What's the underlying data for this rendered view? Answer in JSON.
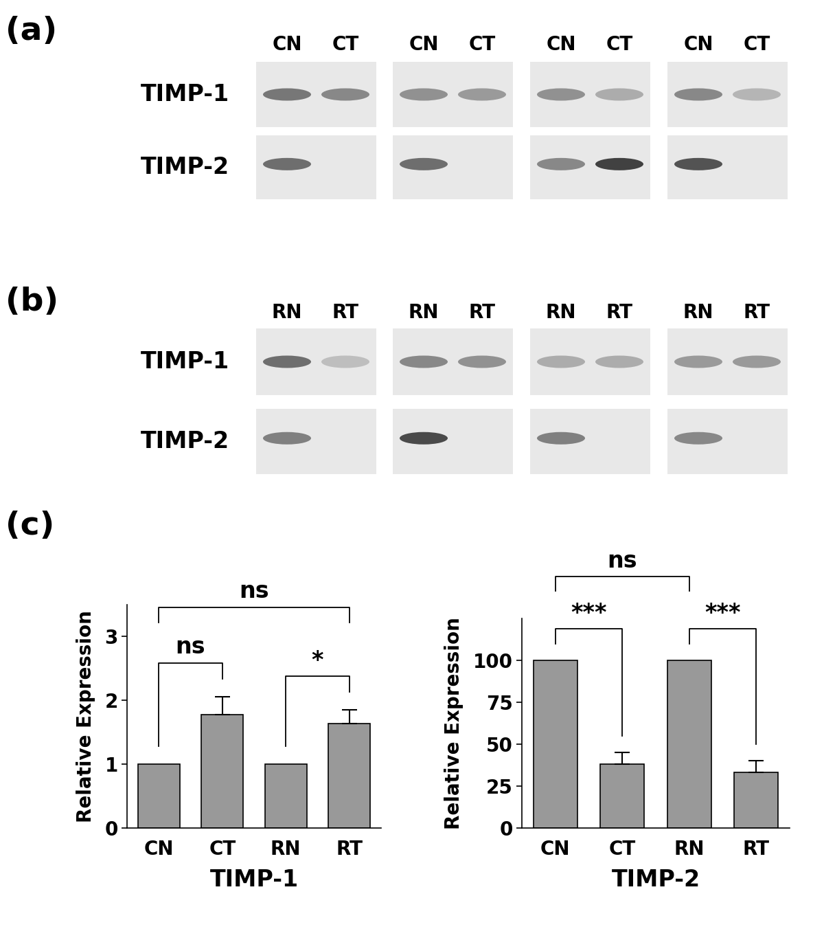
{
  "panel_labels": [
    "(a)",
    "(b)",
    "(c)"
  ],
  "blots": [
    {
      "lane_labels": [
        "CN",
        "CT",
        "CN",
        "CT",
        "CN",
        "CT",
        "CN",
        "CT"
      ],
      "row_labels": [
        "TIMP-1",
        "TIMP-2"
      ]
    },
    {
      "lane_labels": [
        "RN",
        "RT",
        "RN",
        "RT",
        "RN",
        "RT",
        "RN",
        "RT"
      ],
      "row_labels": [
        "TIMP-1",
        "TIMP-2"
      ]
    }
  ],
  "chart_data": [
    {
      "type": "bar",
      "categories": [
        "CN",
        "CT",
        "RN",
        "RT"
      ],
      "values": [
        1,
        1.78,
        1,
        1.64
      ],
      "errors": [
        null,
        0.28,
        null,
        0.21
      ],
      "color": "#999999",
      "ylim": [
        0,
        3.5
      ],
      "yticks": [
        0,
        1,
        2,
        3
      ],
      "ylabel": "Relative Expression",
      "xlabel": "TIMP-1",
      "comparisons": [
        {
          "groups": [
            "CN",
            "CT"
          ],
          "label": "ns"
        },
        {
          "groups": [
            "RN",
            "RT"
          ],
          "label": "*"
        },
        {
          "groups": [
            "CN",
            "RT"
          ],
          "label": "ns"
        }
      ]
    },
    {
      "type": "bar",
      "categories": [
        "CN",
        "CT",
        "RN",
        "RT"
      ],
      "values": [
        100,
        38,
        100,
        33
      ],
      "errors": [
        null,
        7,
        null,
        7
      ],
      "color": "#999999",
      "ylim": [
        0,
        125
      ],
      "yticks": [
        0,
        25,
        50,
        75,
        100
      ],
      "ylabel": "Relative Expression",
      "xlabel": "TIMP-2",
      "comparisons": [
        {
          "groups": [
            "CN",
            "CT"
          ],
          "label": "***"
        },
        {
          "groups": [
            "RN",
            "RT"
          ],
          "label": "***"
        },
        {
          "groups": [
            "CN",
            "RN"
          ],
          "label": "ns"
        }
      ]
    }
  ]
}
